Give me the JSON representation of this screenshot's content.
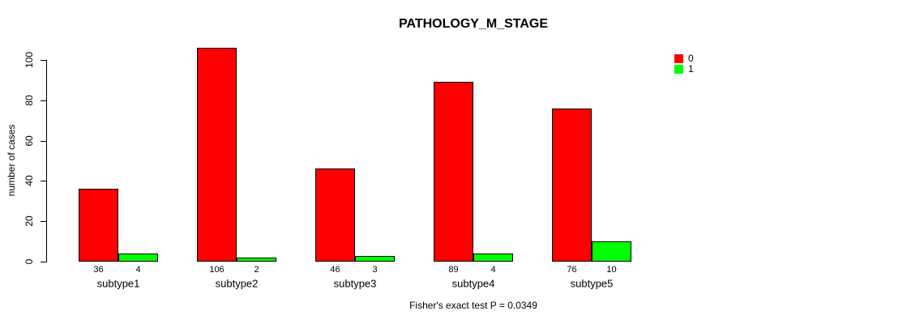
{
  "chart_data": {
    "type": "bar",
    "title": "PATHOLOGY_M_STAGE",
    "xlabel": "",
    "ylabel": "number of cases",
    "categories": [
      "subtype1",
      "subtype2",
      "subtype3",
      "subtype4",
      "subtype5"
    ],
    "series": [
      {
        "name": "0",
        "color": "#FF0000",
        "values": [
          36,
          106,
          46,
          89,
          76
        ]
      },
      {
        "name": "1",
        "color": "#00FF00",
        "values": [
          4,
          2,
          3,
          4,
          10
        ]
      }
    ],
    "ylim": [
      0,
      100
    ],
    "yticks": [
      0,
      20,
      40,
      60,
      80,
      100
    ],
    "grid": false,
    "legend_position": "top-right",
    "show_value_labels": true,
    "caption": "Fisher's exact test P = 0.0349"
  }
}
